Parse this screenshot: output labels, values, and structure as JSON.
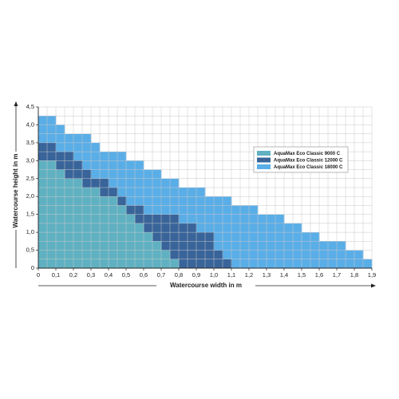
{
  "chart_data": {
    "type": "area",
    "step": true,
    "xlabel": "Watercourse width in m",
    "ylabel": "Watercourse height in m",
    "xlim": [
      0,
      1.9
    ],
    "ylim": [
      0,
      4.5
    ],
    "x_ticks": [
      "0",
      "0,1",
      "0,2",
      "0,3",
      "0,4",
      "0,5",
      "0,6",
      "0,7",
      "0,8",
      "0,9",
      "1,0",
      "1,1",
      "1,2",
      "1,3",
      "1,4",
      "1,5",
      "1,6",
      "1,7",
      "1,8",
      "1,9"
    ],
    "y_ticks": [
      "0",
      "0,5",
      "1,0",
      "1,5",
      "2,0",
      "2,5",
      "3,0",
      "3,5",
      "4,0",
      "4,5"
    ],
    "x_tick_values": [
      0,
      0.1,
      0.2,
      0.3,
      0.4,
      0.5,
      0.6,
      0.7,
      0.8,
      0.9,
      1.0,
      1.1,
      1.2,
      1.3,
      1.4,
      1.5,
      1.6,
      1.7,
      1.8,
      1.9
    ],
    "y_tick_values": [
      0,
      0.5,
      1.0,
      1.5,
      2.0,
      2.5,
      3.0,
      3.5,
      4.0,
      4.5
    ],
    "grid": true,
    "legend_position": "right",
    "series": [
      {
        "name": "AquaMax Eco Classic 18000 C",
        "color": "#5aaee8",
        "steps": [
          [
            0,
            0.1,
            4.25
          ],
          [
            0.1,
            0.15,
            4.0
          ],
          [
            0.15,
            0.3,
            3.75
          ],
          [
            0.3,
            0.35,
            3.5
          ],
          [
            0.35,
            0.5,
            3.25
          ],
          [
            0.5,
            0.6,
            3.0
          ],
          [
            0.6,
            0.7,
            2.75
          ],
          [
            0.7,
            0.8,
            2.5
          ],
          [
            0.8,
            0.95,
            2.25
          ],
          [
            0.95,
            1.1,
            2.0
          ],
          [
            1.1,
            1.25,
            1.75
          ],
          [
            1.25,
            1.4,
            1.5
          ],
          [
            1.4,
            1.5,
            1.25
          ],
          [
            1.5,
            1.6,
            1.0
          ],
          [
            1.6,
            1.75,
            0.75
          ],
          [
            1.75,
            1.85,
            0.5
          ],
          [
            1.85,
            1.9,
            0.25
          ]
        ]
      },
      {
        "name": "AquaMax Eco Classic 12000 C",
        "color": "#38649a",
        "steps": [
          [
            0,
            0.1,
            3.5
          ],
          [
            0.1,
            0.2,
            3.25
          ],
          [
            0.2,
            0.25,
            3.0
          ],
          [
            0.25,
            0.3,
            2.75
          ],
          [
            0.3,
            0.4,
            2.5
          ],
          [
            0.4,
            0.45,
            2.25
          ],
          [
            0.45,
            0.5,
            2.0
          ],
          [
            0.5,
            0.6,
            1.75
          ],
          [
            0.6,
            0.8,
            1.5
          ],
          [
            0.8,
            0.9,
            1.25
          ],
          [
            0.9,
            1.0,
            1.0
          ],
          [
            1.0,
            1.05,
            0.5
          ],
          [
            1.05,
            1.1,
            0.25
          ]
        ]
      },
      {
        "name": "AquaMax Eco Classic 9000 C",
        "color": "#5fb1c2",
        "steps": [
          [
            0,
            0.1,
            3.0
          ],
          [
            0.1,
            0.15,
            2.75
          ],
          [
            0.15,
            0.25,
            2.5
          ],
          [
            0.25,
            0.35,
            2.25
          ],
          [
            0.35,
            0.45,
            2.0
          ],
          [
            0.45,
            0.5,
            1.75
          ],
          [
            0.5,
            0.55,
            1.5
          ],
          [
            0.55,
            0.6,
            1.25
          ],
          [
            0.6,
            0.65,
            1.0
          ],
          [
            0.65,
            0.7,
            0.75
          ],
          [
            0.7,
            0.75,
            0.5
          ],
          [
            0.75,
            0.8,
            0.25
          ]
        ]
      }
    ],
    "legend": [
      {
        "name": "AquaMax Eco Classic 9000 C",
        "color": "#5fb1c2"
      },
      {
        "name": "AquaMax Eco Classic 12000 C",
        "color": "#38649a"
      },
      {
        "name": "AquaMax Eco Classic 18000 C",
        "color": "#5aaee8"
      }
    ]
  }
}
